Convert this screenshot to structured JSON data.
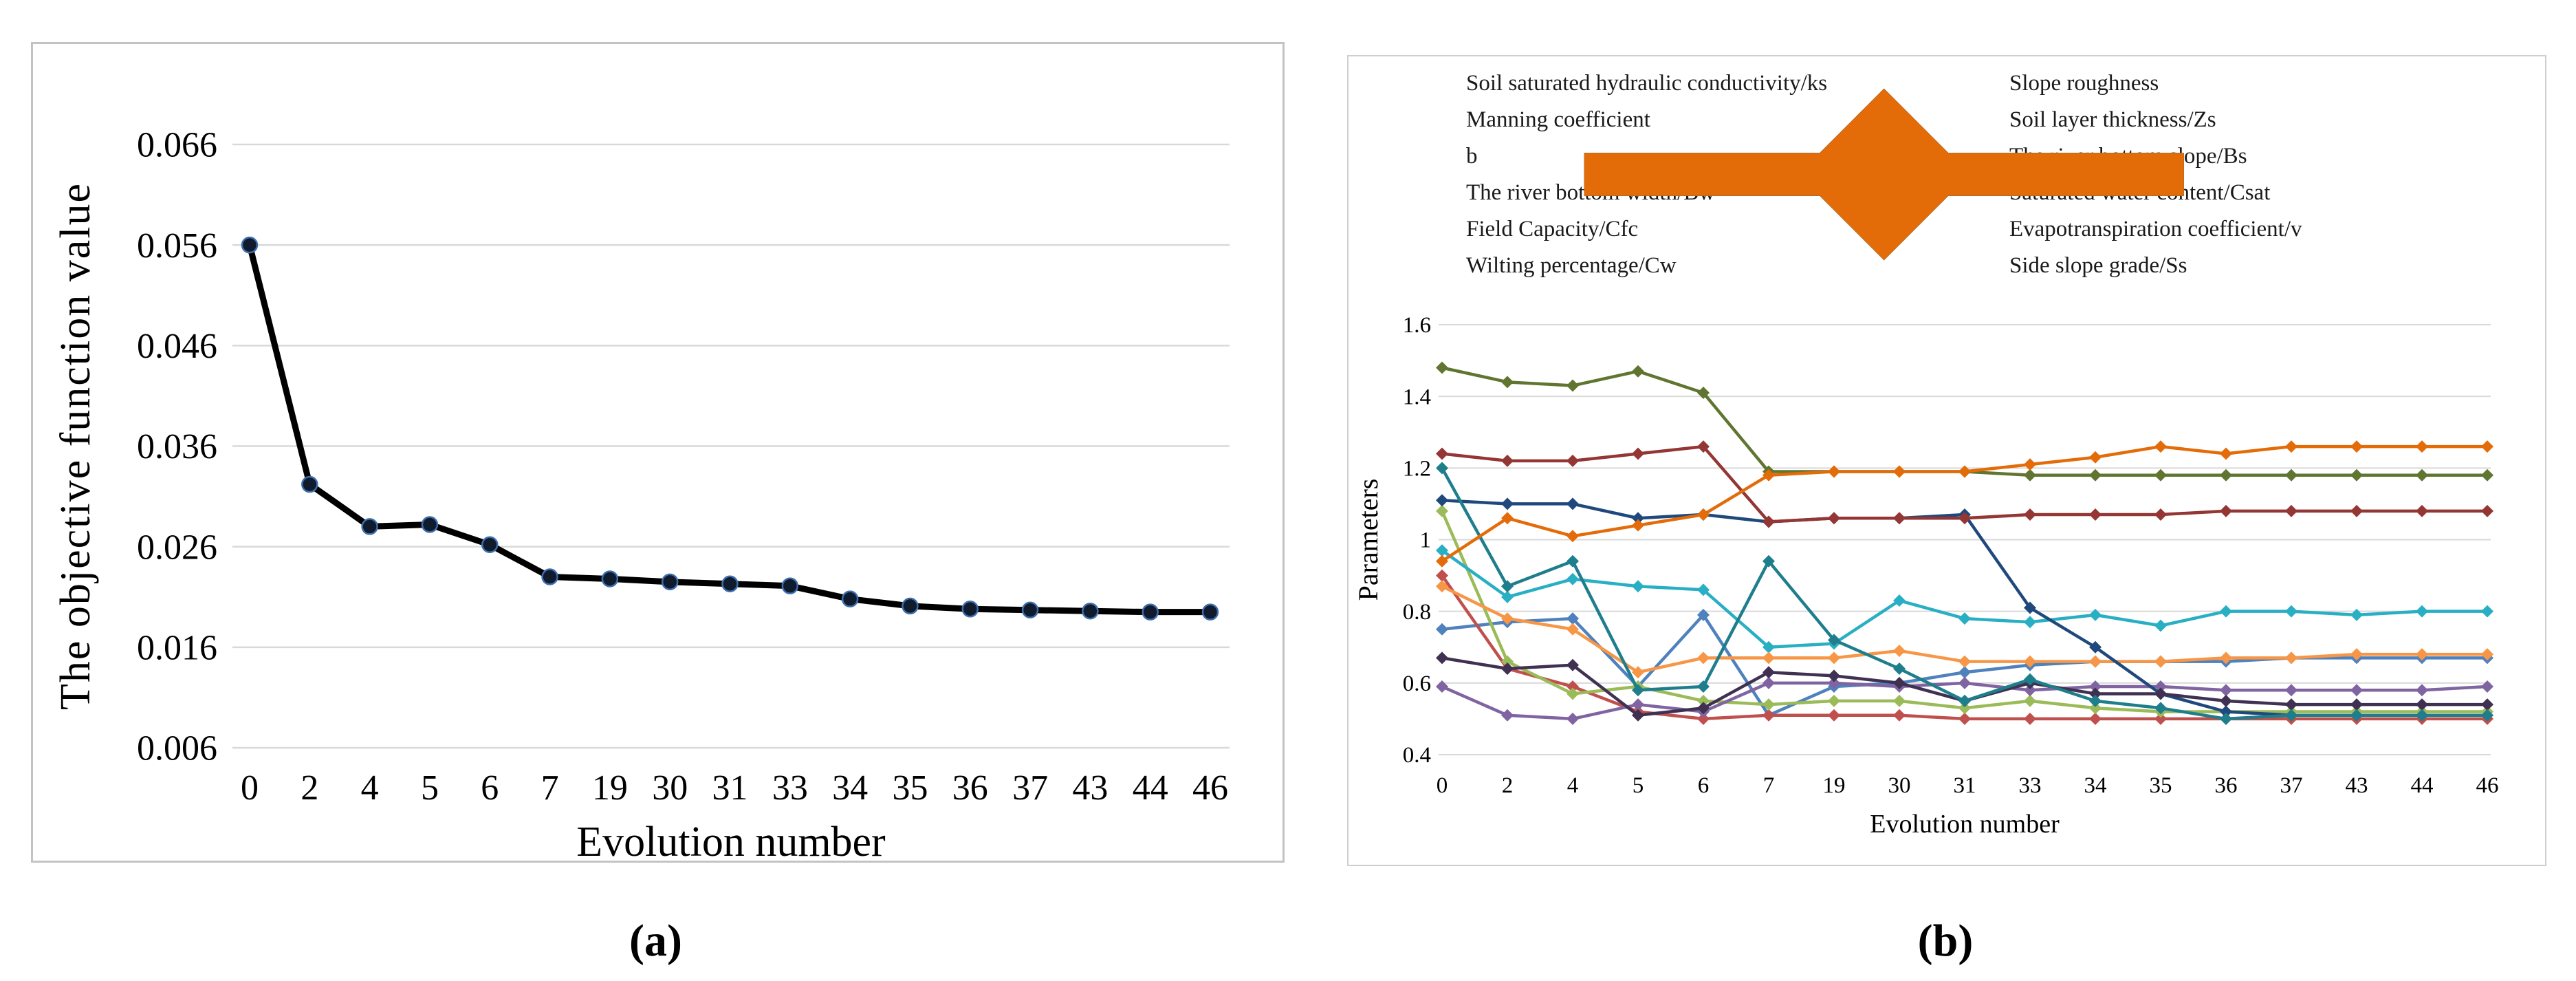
{
  "figure": {
    "captions": {
      "a": "(a)",
      "b": "(b)"
    }
  },
  "styles": {
    "background": "#ffffff",
    "panel_border_a": "#c3c3c3",
    "panel_border_b": "#cfcfcf",
    "gridline": "#d9d9d9",
    "axis_text": "#000000",
    "line_a": "#000000",
    "marker_a_fill": "#111b2e",
    "marker_a_edge": "#3d6fae"
  },
  "chart_data": [
    {
      "id": "chart-a",
      "type": "line",
      "title": "",
      "xlabel": "Evolution number",
      "ylabel": "The objective function value",
      "categories": [
        "0",
        "2",
        "4",
        "5",
        "6",
        "7",
        "19",
        "30",
        "31",
        "33",
        "34",
        "35",
        "36",
        "37",
        "43",
        "44",
        "46"
      ],
      "yticks": [
        "0.006",
        "0.016",
        "0.026",
        "0.036",
        "0.046",
        "0.056",
        "0.066"
      ],
      "ylim": [
        0.006,
        0.066
      ],
      "grid": "horizontal",
      "legend_position": "none",
      "series": [
        {
          "name": "The objective function value",
          "color": "#000000",
          "marker": "circle",
          "values": [
            0.056,
            0.0322,
            0.028,
            0.0282,
            0.0262,
            0.023,
            0.0228,
            0.0225,
            0.0223,
            0.0221,
            0.0208,
            0.0201,
            0.0198,
            0.0197,
            0.0196,
            0.0195,
            0.0195
          ]
        }
      ]
    },
    {
      "id": "chart-b",
      "type": "line",
      "title": "",
      "xlabel": "Evolution number",
      "ylabel": "Parameters",
      "categories": [
        "0",
        "2",
        "4",
        "5",
        "6",
        "7",
        "19",
        "30",
        "31",
        "33",
        "34",
        "35",
        "36",
        "37",
        "43",
        "44",
        "46"
      ],
      "yticks": [
        "0.4",
        "0.6",
        "0.8",
        "1",
        "1.2",
        "1.4",
        "1.6"
      ],
      "ylim": [
        0.4,
        1.6
      ],
      "grid": "horizontal",
      "legend_position": "top-two-columns",
      "series": [
        {
          "name": "Soil saturated hydraulic conductivity/ks",
          "color": "#4F81BD",
          "values": [
            0.75,
            0.77,
            0.78,
            0.59,
            0.79,
            0.51,
            0.59,
            0.6,
            0.63,
            0.65,
            0.66,
            0.66,
            0.66,
            0.67,
            0.67,
            0.67,
            0.67
          ]
        },
        {
          "name": "Slope roughness",
          "color": "#C0504D",
          "values": [
            0.9,
            0.64,
            0.59,
            0.52,
            0.5,
            0.51,
            0.51,
            0.51,
            0.5,
            0.5,
            0.5,
            0.5,
            0.5,
            0.5,
            0.5,
            0.5,
            0.5
          ]
        },
        {
          "name": "Manning coefficient",
          "color": "#9BBB59",
          "values": [
            1.08,
            0.66,
            0.57,
            0.59,
            0.55,
            0.54,
            0.55,
            0.55,
            0.53,
            0.55,
            0.53,
            0.52,
            0.52,
            0.52,
            0.52,
            0.52,
            0.52
          ]
        },
        {
          "name": "Soil layer thickness/Zs",
          "color": "#8064A2",
          "values": [
            0.59,
            0.51,
            0.5,
            0.54,
            0.52,
            0.6,
            0.6,
            0.59,
            0.6,
            0.58,
            0.59,
            0.59,
            0.58,
            0.58,
            0.58,
            0.58,
            0.59
          ]
        },
        {
          "name": "b",
          "color": "#29AFC4",
          "values": [
            0.97,
            0.84,
            0.89,
            0.87,
            0.86,
            0.7,
            0.71,
            0.83,
            0.78,
            0.77,
            0.79,
            0.76,
            0.8,
            0.8,
            0.79,
            0.8,
            0.8
          ]
        },
        {
          "name": "The river bottom slope/Bs",
          "color": "#F79646",
          "values": [
            0.87,
            0.78,
            0.75,
            0.63,
            0.67,
            0.67,
            0.67,
            0.69,
            0.66,
            0.66,
            0.66,
            0.66,
            0.67,
            0.67,
            0.68,
            0.68,
            0.68
          ]
        },
        {
          "name": "The river bottom width/Bw",
          "color": "#1F497D",
          "values": [
            1.11,
            1.1,
            1.1,
            1.06,
            1.07,
            1.05,
            1.06,
            1.06,
            1.07,
            0.81,
            0.7,
            0.57,
            0.52,
            0.51,
            0.51,
            0.51,
            0.51
          ]
        },
        {
          "name": "Saturated water content/Csat",
          "color": "#943634",
          "values": [
            1.24,
            1.22,
            1.22,
            1.24,
            1.26,
            1.05,
            1.06,
            1.06,
            1.06,
            1.07,
            1.07,
            1.07,
            1.08,
            1.08,
            1.08,
            1.08,
            1.08
          ]
        },
        {
          "name": "Field Capacity/Cfc",
          "color": "#5F7530",
          "values": [
            1.48,
            1.44,
            1.43,
            1.47,
            1.41,
            1.19,
            1.19,
            1.19,
            1.19,
            1.18,
            1.18,
            1.18,
            1.18,
            1.18,
            1.18,
            1.18,
            1.18
          ]
        },
        {
          "name": "Evapotranspiration coefficient/v",
          "color": "#403152",
          "values": [
            0.67,
            0.64,
            0.65,
            0.51,
            0.53,
            0.63,
            0.62,
            0.6,
            0.55,
            0.6,
            0.57,
            0.57,
            0.55,
            0.54,
            0.54,
            0.54,
            0.54
          ]
        },
        {
          "name": "Wilting percentage/Cw",
          "color": "#1E7E8C",
          "values": [
            1.2,
            0.87,
            0.94,
            0.58,
            0.59,
            0.94,
            0.72,
            0.64,
            0.55,
            0.61,
            0.55,
            0.53,
            0.5,
            0.51,
            0.51,
            0.51,
            0.51
          ]
        },
        {
          "name": "Side slope grade/Ss",
          "color": "#E36C09",
          "values": [
            0.94,
            1.06,
            1.01,
            1.04,
            1.07,
            1.18,
            1.19,
            1.19,
            1.19,
            1.21,
            1.23,
            1.26,
            1.24,
            1.26,
            1.26,
            1.26,
            1.26
          ]
        }
      ]
    }
  ]
}
